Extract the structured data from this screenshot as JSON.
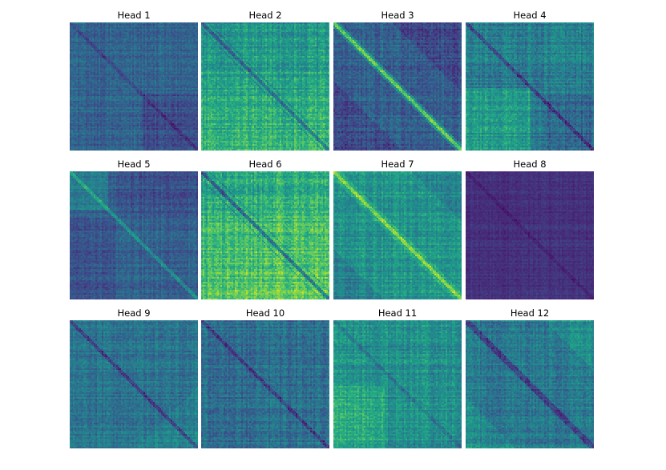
{
  "chart_data": {
    "type": "heatmap",
    "layout": "grid 3 rows x 4 columns",
    "colormap": "viridis",
    "axes_visible": false,
    "panels": [
      {
        "title": "Head 1",
        "mean_level": 0.32,
        "spread": 0.1,
        "pattern": "weak diagonal, darker lower-right block"
      },
      {
        "title": "Head 2",
        "mean_level": 0.5,
        "spread": 0.14,
        "pattern": "dark diagonal, brighter bottom region"
      },
      {
        "title": "Head 3",
        "mean_level": 0.3,
        "spread": 0.12,
        "pattern": "strong bright diagonal band, dark lower-left and upper-right"
      },
      {
        "title": "Head 4",
        "mean_level": 0.42,
        "spread": 0.13,
        "pattern": "dark diagonal, bright lower-left region"
      },
      {
        "title": "Head 5",
        "mean_level": 0.3,
        "spread": 0.1,
        "pattern": "bright top-left block, dark quadrant blocks"
      },
      {
        "title": "Head 6",
        "mean_level": 0.58,
        "spread": 0.15,
        "pattern": "dark diagonal, bright bottom and right"
      },
      {
        "title": "Head 7",
        "mean_level": 0.52,
        "spread": 0.12,
        "pattern": "bright diagonal band"
      },
      {
        "title": "Head 8",
        "mean_level": 0.14,
        "spread": 0.05,
        "pattern": "nearly uniform dark purple, faint diagonal"
      },
      {
        "title": "Head 9",
        "mean_level": 0.38,
        "spread": 0.11,
        "pattern": "dark diagonal"
      },
      {
        "title": "Head 10",
        "mean_level": 0.36,
        "spread": 0.12,
        "pattern": "dark diagonal, textured"
      },
      {
        "title": "Head 11",
        "mean_level": 0.5,
        "spread": 0.13,
        "pattern": "bright textured, bright lower-left"
      },
      {
        "title": "Head 12",
        "mean_level": 0.4,
        "spread": 0.12,
        "pattern": "dark diagonal band, bright corners"
      }
    ],
    "value_range": [
      0,
      1
    ]
  }
}
